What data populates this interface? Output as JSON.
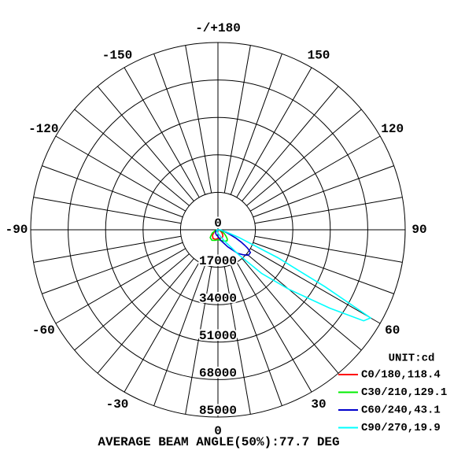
{
  "chart_data": {
    "type": "polar",
    "rlim": [
      0,
      85000
    ],
    "rticks": [
      0,
      17000,
      34000,
      51000,
      68000,
      85000
    ],
    "angle_ticks": [
      0,
      30,
      60,
      90,
      120,
      150,
      {
        "value": 180,
        "label": "-/+180"
      },
      -150,
      -120,
      -90,
      -60,
      -30
    ],
    "angles": [
      -90,
      -75,
      -60,
      -45,
      -30,
      -15,
      0,
      15,
      30,
      40,
      45,
      50,
      55,
      58,
      60,
      62,
      65,
      70,
      75,
      80,
      90
    ],
    "series": [
      {
        "name": "C0/180,118.4",
        "color": "#ff0000",
        "values": [
          200,
          800,
          2000,
          3500,
          4500,
          4500,
          4000,
          4000,
          4000,
          3500,
          3000,
          2500,
          2000,
          1800,
          1500,
          1400,
          1200,
          900,
          600,
          400,
          200
        ]
      },
      {
        "name": "C30/210,129.1",
        "color": "#00ee00",
        "values": [
          300,
          1200,
          3000,
          5000,
          5500,
          5000,
          4500,
          5000,
          6000,
          6500,
          6000,
          5000,
          4000,
          3500,
          3000,
          2700,
          2200,
          1500,
          900,
          600,
          300
        ]
      },
      {
        "name": "C60/240,43.1",
        "color": "#0000cc",
        "values": [
          200,
          500,
          1000,
          1500,
          2000,
          2500,
          3000,
          5000,
          9000,
          14000,
          16000,
          18000,
          18000,
          16000,
          14000,
          12000,
          9000,
          5000,
          3000,
          1500,
          500
        ]
      },
      {
        "name": "C90/270,19.9",
        "color": "#00ffff",
        "values": [
          300,
          400,
          500,
          600,
          800,
          1000,
          1500,
          2500,
          6000,
          15000,
          28000,
          42000,
          62000,
          78000,
          80000,
          55000,
          30000,
          10000,
          4000,
          2000,
          1000
        ]
      }
    ],
    "legend_title": "UNIT:cd",
    "footer": "AVERAGE BEAM ANGLE(50%):77.7 DEG"
  }
}
